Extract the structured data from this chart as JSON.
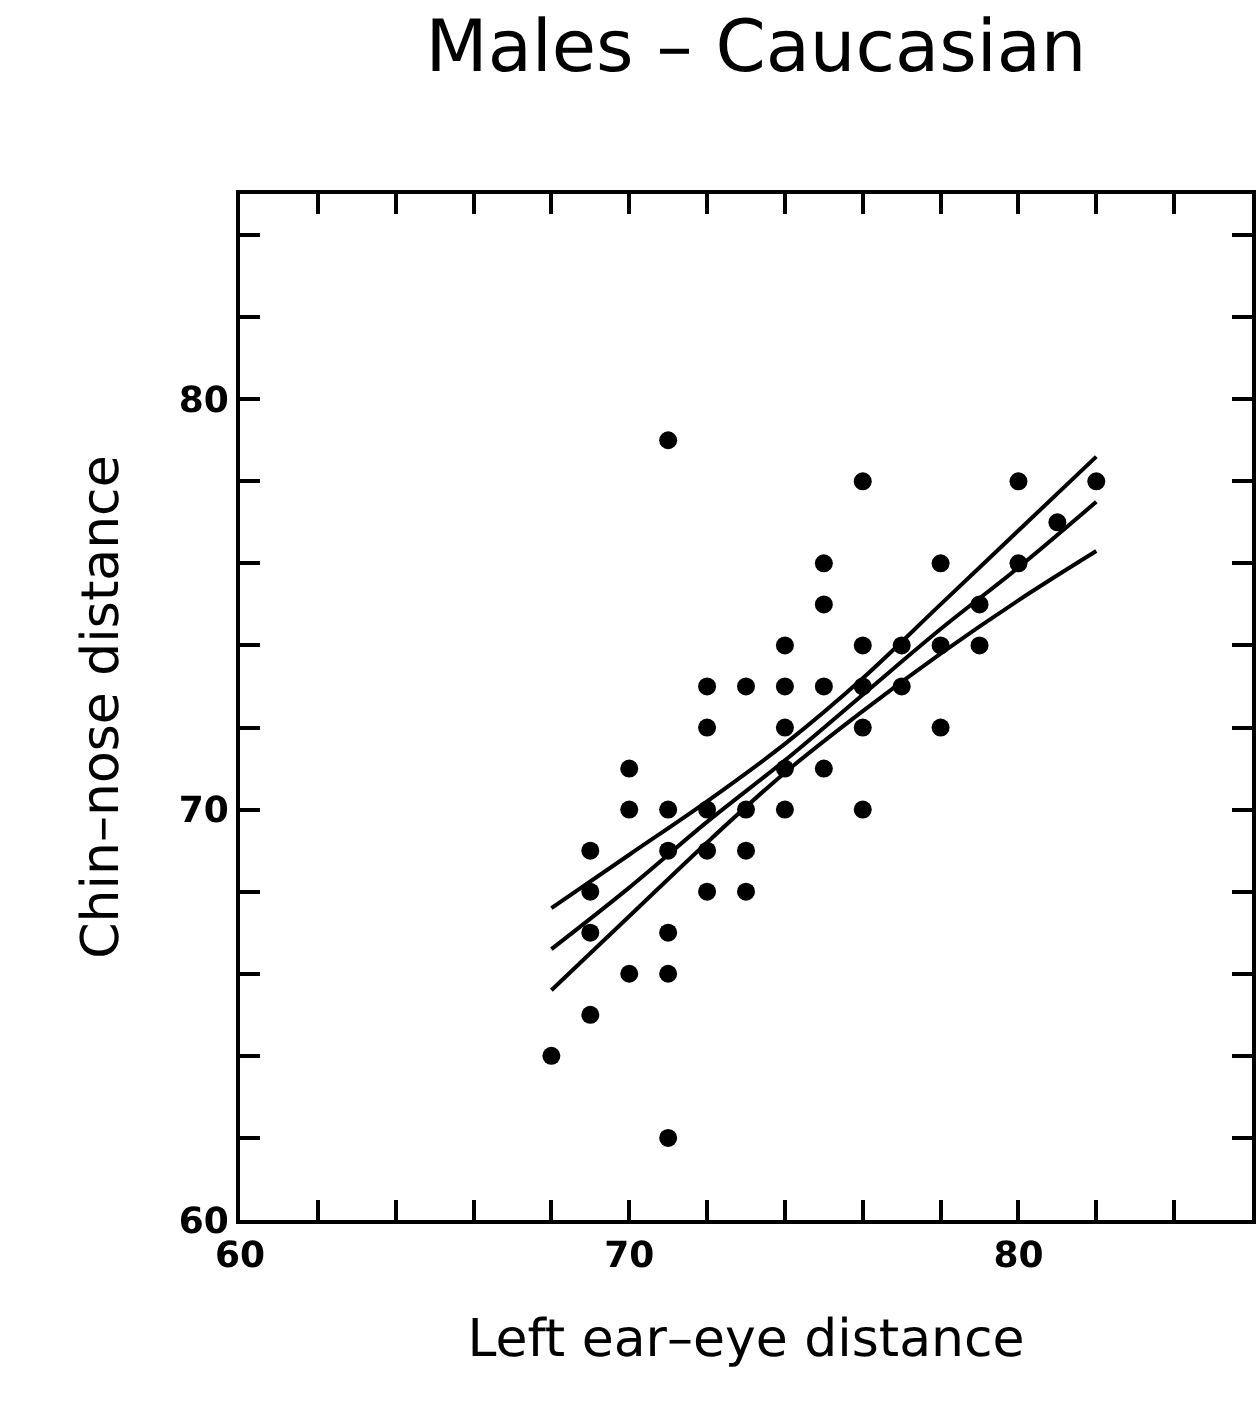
{
  "chart_data": {
    "type": "scatter",
    "title": "Males – Caucasian",
    "xlabel": "Left ear–eye distance",
    "ylabel": "Chin–nose distance",
    "xlim": [
      60,
      86
    ],
    "ylim": [
      60,
      85
    ],
    "xticks": [
      60,
      {
        "value": 62,
        "label": null
      },
      {
        "value": 64,
        "label": null
      },
      {
        "value": 66,
        "label": null
      },
      {
        "value": 68,
        "label": null
      },
      70,
      {
        "value": 72,
        "label": null
      },
      {
        "value": 74,
        "label": null
      },
      {
        "value": 76,
        "label": null
      },
      {
        "value": 78,
        "label": null
      },
      80,
      {
        "value": 82,
        "label": null
      },
      {
        "value": 84,
        "label": null
      }
    ],
    "yticks": [
      60,
      {
        "value": 62,
        "label": null
      },
      {
        "value": 64,
        "label": null
      },
      {
        "value": 66,
        "label": null
      },
      {
        "value": 68,
        "label": null
      },
      70,
      {
        "value": 72,
        "label": null
      },
      {
        "value": 74,
        "label": null
      },
      {
        "value": 76,
        "label": null
      },
      {
        "value": 78,
        "label": null
      },
      80,
      {
        "value": 82,
        "label": null
      },
      {
        "value": 84,
        "label": null
      }
    ],
    "grid": false,
    "series": [
      {
        "marker": "circle",
        "color": "#000000",
        "x": [
          71,
          76,
          80,
          82,
          81,
          75,
          78,
          80,
          75,
          79,
          74,
          76,
          77,
          78,
          79,
          72,
          73,
          74,
          75,
          76,
          77,
          72,
          74,
          76,
          78,
          70,
          74,
          75,
          70,
          71,
          72,
          73,
          74,
          76,
          69,
          71,
          72,
          73,
          69,
          72,
          73,
          69,
          71,
          70,
          71,
          69,
          68,
          71
        ],
        "values": [
          79,
          78,
          78,
          78,
          77,
          76,
          76,
          76,
          75,
          75,
          74,
          74,
          74,
          74,
          74,
          73,
          73,
          73,
          73,
          73,
          73,
          72,
          72,
          72,
          72,
          71,
          71,
          71,
          70,
          70,
          70,
          70,
          70,
          70,
          69,
          69,
          69,
          69,
          68,
          68,
          68,
          67,
          67,
          66,
          66,
          65,
          64,
          62
        ]
      },
      {
        "type": "line",
        "color": "#000000",
        "line_style": "solid",
        "x": [
          68,
          70,
          72,
          74,
          76,
          78,
          80,
          82
        ],
        "values": [
          66.6,
          68.1,
          69.7,
          71.2,
          72.8,
          74.4,
          75.9,
          77.5
        ]
      },
      {
        "type": "line",
        "color": "#000000",
        "line_style": "solid",
        "x": [
          68,
          70,
          72,
          74,
          76,
          78,
          80,
          82
        ],
        "values": [
          67.6,
          68.9,
          70.2,
          71.6,
          73.2,
          75.0,
          76.8,
          78.6
        ]
      },
      {
        "type": "line",
        "color": "#000000",
        "line_style": "solid",
        "x": [
          68,
          70,
          72,
          74,
          76,
          78,
          80,
          82
        ],
        "values": [
          65.6,
          67.4,
          69.2,
          70.9,
          72.4,
          73.8,
          75.1,
          76.3
        ]
      }
    ]
  }
}
